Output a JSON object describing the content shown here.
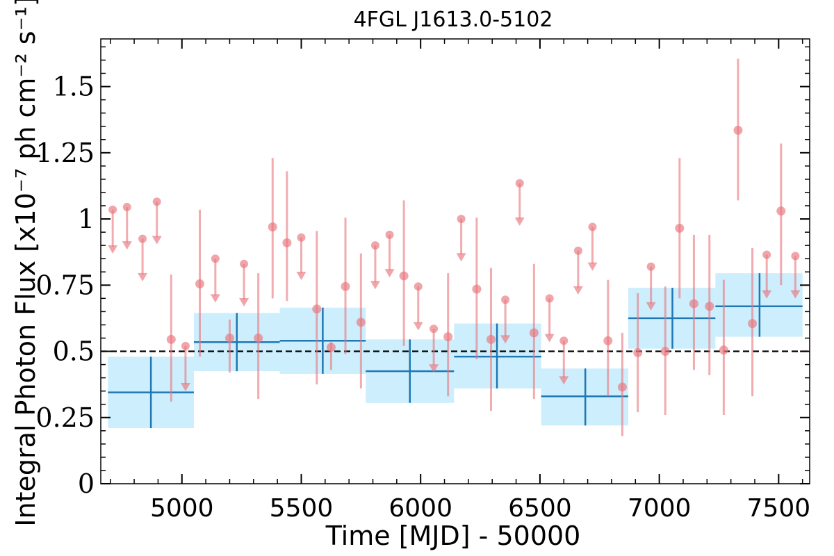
{
  "chart_data": {
    "type": "scatter",
    "title": "4FGL J1613.0-5102",
    "xlabel": "Time [MJD] - 50000",
    "ylabel": "Integral Photon Flux [x10⁻⁷ ph cm⁻² s⁻¹]",
    "xlim": [
      4660,
      7630
    ],
    "ylim": [
      0,
      1.68
    ],
    "x_ticks": [
      5000,
      5500,
      6000,
      6500,
      7000,
      7500
    ],
    "x_tick_labels": [
      "5000",
      "5500",
      "6000",
      "6500",
      "7000",
      "7500"
    ],
    "y_ticks": [
      0,
      0.25,
      0.5,
      0.75,
      1.0,
      1.25,
      1.5
    ],
    "y_tick_labels": [
      "0",
      "0.25",
      "0.5",
      "0.75",
      "1",
      "1.25",
      "1.5"
    ],
    "reference_line": 0.5,
    "colors": {
      "short_bins": "#e8747c",
      "long_bins": "#1f77b4",
      "long_band": "#cdeefc",
      "reference": "#000000"
    },
    "long_bins": [
      {
        "x": 4870,
        "x_lo": 4690,
        "x_hi": 5050,
        "y": 0.345,
        "y_lo": 0.21,
        "y_hi": 0.48
      },
      {
        "x": 5230,
        "x_lo": 5050,
        "x_hi": 5410,
        "y": 0.535,
        "y_lo": 0.425,
        "y_hi": 0.645
      },
      {
        "x": 5590,
        "x_lo": 5410,
        "x_hi": 5770,
        "y": 0.54,
        "y_lo": 0.415,
        "y_hi": 0.665
      },
      {
        "x": 5955,
        "x_lo": 5770,
        "x_hi": 6140,
        "y": 0.425,
        "y_lo": 0.305,
        "y_hi": 0.545
      },
      {
        "x": 6320,
        "x_lo": 6140,
        "x_hi": 6505,
        "y": 0.48,
        "y_lo": 0.36,
        "y_hi": 0.605
      },
      {
        "x": 6690,
        "x_lo": 6505,
        "x_hi": 6870,
        "y": 0.33,
        "y_lo": 0.22,
        "y_hi": 0.435
      },
      {
        "x": 7055,
        "x_lo": 6870,
        "x_hi": 7235,
        "y": 0.625,
        "y_lo": 0.51,
        "y_hi": 0.74
      },
      {
        "x": 7420,
        "x_lo": 7235,
        "x_hi": 7600,
        "y": 0.67,
        "y_lo": 0.555,
        "y_hi": 0.795
      }
    ],
    "short_bins_points": [
      {
        "x": 4955,
        "y": 0.545,
        "y_lo": 0.31,
        "y_hi": 0.79
      },
      {
        "x": 5075,
        "y": 0.755,
        "y_lo": 0.48,
        "y_hi": 1.035
      },
      {
        "x": 5200,
        "y": 0.55,
        "y_lo": 0.42,
        "y_hi": 0.62
      },
      {
        "x": 5320,
        "y": 0.55,
        "y_lo": 0.32,
        "y_hi": 0.795
      },
      {
        "x": 5380,
        "y": 0.97,
        "y_lo": 0.7,
        "y_hi": 1.23
      },
      {
        "x": 5440,
        "y": 0.91,
        "y_lo": 0.69,
        "y_hi": 1.18
      },
      {
        "x": 5565,
        "y": 0.66,
        "y_lo": 0.375,
        "y_hi": 0.955
      },
      {
        "x": 5625,
        "y": 0.515,
        "y_lo": 0.43,
        "y_hi": 0.535
      },
      {
        "x": 5685,
        "y": 0.745,
        "y_lo": 0.49,
        "y_hi": 1.005
      },
      {
        "x": 5750,
        "y": 0.61,
        "y_lo": 0.36,
        "y_hi": 0.87
      },
      {
        "x": 5930,
        "y": 0.785,
        "y_lo": 0.52,
        "y_hi": 1.07
      },
      {
        "x": 6115,
        "y": 0.555,
        "y_lo": 0.33,
        "y_hi": 0.795
      },
      {
        "x": 6235,
        "y": 0.735,
        "y_lo": 0.47,
        "y_hi": 1.005
      },
      {
        "x": 6295,
        "y": 0.545,
        "y_lo": 0.275,
        "y_hi": 0.815
      },
      {
        "x": 6475,
        "y": 0.57,
        "y_lo": 0.32,
        "y_hi": 0.83
      },
      {
        "x": 6785,
        "y": 0.54,
        "y_lo": 0.33,
        "y_hi": 0.77
      },
      {
        "x": 6845,
        "y": 0.365,
        "y_lo": 0.18,
        "y_hi": 0.57
      },
      {
        "x": 6910,
        "y": 0.495,
        "y_lo": 0.27,
        "y_hi": 0.72
      },
      {
        "x": 7025,
        "y": 0.5,
        "y_lo": 0.26,
        "y_hi": 0.745
      },
      {
        "x": 7085,
        "y": 0.965,
        "y_lo": 0.7,
        "y_hi": 1.23
      },
      {
        "x": 7145,
        "y": 0.68,
        "y_lo": 0.43,
        "y_hi": 0.94
      },
      {
        "x": 7210,
        "y": 0.67,
        "y_lo": 0.41,
        "y_hi": 0.94
      },
      {
        "x": 7270,
        "y": 0.505,
        "y_lo": 0.26,
        "y_hi": 0.77
      },
      {
        "x": 7330,
        "y": 1.335,
        "y_lo": 1.07,
        "y_hi": 1.605
      },
      {
        "x": 7390,
        "y": 0.605,
        "y_lo": 0.33,
        "y_hi": 0.89
      },
      {
        "x": 7510,
        "y": 1.03,
        "y_lo": 0.75,
        "y_hi": 1.285
      }
    ],
    "short_bins_upper_limits": [
      {
        "x": 4710,
        "y": 1.035,
        "y_end": 0.885
      },
      {
        "x": 4770,
        "y": 1.045,
        "y_end": 0.9
      },
      {
        "x": 4835,
        "y": 0.925,
        "y_end": 0.78
      },
      {
        "x": 4895,
        "y": 1.065,
        "y_end": 0.92
      },
      {
        "x": 5015,
        "y": 0.52,
        "y_end": 0.365
      },
      {
        "x": 5140,
        "y": 0.85,
        "y_end": 0.7
      },
      {
        "x": 5260,
        "y": 0.83,
        "y_end": 0.685
      },
      {
        "x": 5500,
        "y": 0.93,
        "y_end": 0.785
      },
      {
        "x": 5810,
        "y": 0.9,
        "y_end": 0.75
      },
      {
        "x": 5870,
        "y": 0.94,
        "y_end": 0.795
      },
      {
        "x": 5990,
        "y": 0.745,
        "y_end": 0.595
      },
      {
        "x": 6055,
        "y": 0.585,
        "y_end": 0.435
      },
      {
        "x": 6170,
        "y": 1.0,
        "y_end": 0.855
      },
      {
        "x": 6355,
        "y": 0.695,
        "y_end": 0.545
      },
      {
        "x": 6415,
        "y": 1.135,
        "y_end": 0.99
      },
      {
        "x": 6540,
        "y": 0.7,
        "y_end": 0.55
      },
      {
        "x": 6600,
        "y": 0.54,
        "y_end": 0.39
      },
      {
        "x": 6660,
        "y": 0.88,
        "y_end": 0.73
      },
      {
        "x": 6720,
        "y": 0.97,
        "y_end": 0.82
      },
      {
        "x": 6965,
        "y": 0.82,
        "y_end": 0.67
      },
      {
        "x": 7450,
        "y": 0.865,
        "y_end": 0.715
      },
      {
        "x": 7570,
        "y": 0.86,
        "y_end": 0.715
      }
    ]
  }
}
